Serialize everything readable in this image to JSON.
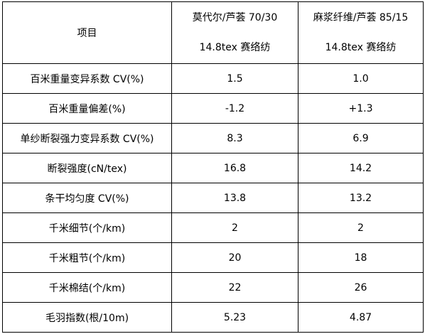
{
  "table": {
    "header": {
      "item": "项目",
      "columns": [
        [
          "莫代尔/芦荟 70/30",
          "14.8tex 赛络纺"
        ],
        [
          "麻浆纤维/芦荟 85/15",
          "14.8tex 赛络纺"
        ]
      ]
    },
    "rows": [
      [
        "百米重量变异系数 CV(%)",
        "1.5",
        "1.0"
      ],
      [
        "百米重量偏差(%)",
        "-1.2",
        "+1.3"
      ],
      [
        "单纱断裂强力变异系数 CV(%)",
        "8.3",
        "6.9"
      ],
      [
        "断裂强度(cN/tex)",
        "16.8",
        "14.2"
      ],
      [
        "条干均匀度 CV(%)",
        "13.8",
        "13.2"
      ],
      [
        "千米细节(个/km)",
        "2",
        "2"
      ],
      [
        "千米粗节(个/km)",
        "20",
        "18"
      ],
      [
        "千米棉结(个/km)",
        "22",
        "26"
      ],
      [
        "毛羽指数(根/10m)",
        "5.23",
        "4.87"
      ]
    ]
  }
}
